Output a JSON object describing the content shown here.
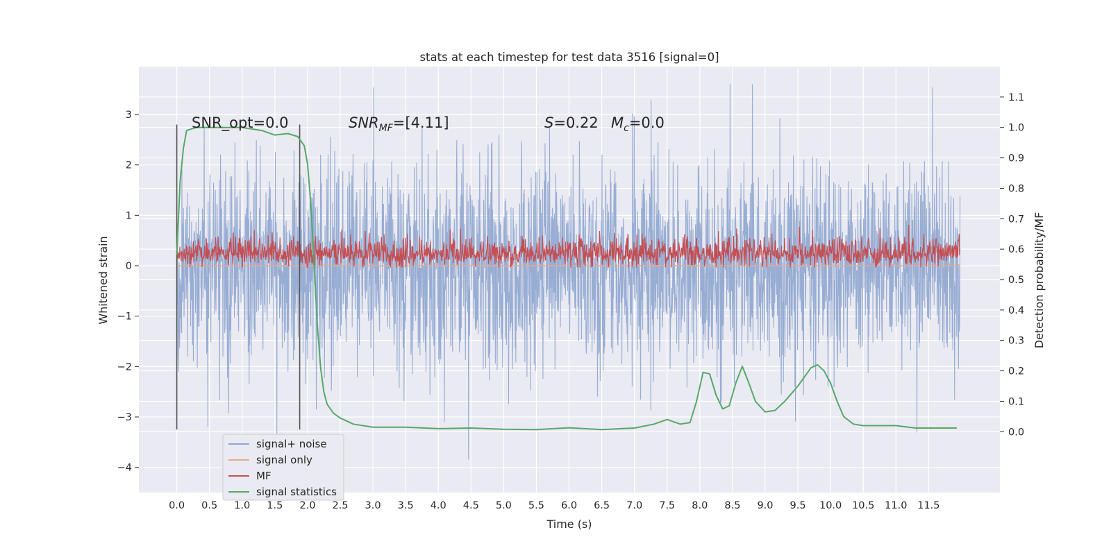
{
  "chart_data": {
    "type": "line",
    "title": "stats at each timestep for test data 3516 [signal=0]",
    "xlabel": "Time (s)",
    "ylabel_left": "Whitened strain",
    "ylabel_right": "Detection probability/MF",
    "xlim": [
      -0.58,
      12.59
    ],
    "ylim_left": [
      -4.5,
      3.95
    ],
    "ylim_right": [
      -0.2,
      1.2
    ],
    "x_ticks": [
      0.0,
      0.5,
      1.0,
      1.5,
      2.0,
      2.5,
      3.0,
      3.5,
      4.0,
      4.5,
      5.0,
      5.5,
      6.0,
      6.5,
      7.0,
      7.5,
      8.0,
      8.5,
      9.0,
      9.5,
      10.0,
      10.5,
      11.0,
      11.5
    ],
    "x_tick_labels": [
      "0.0",
      "0.5",
      "1.0",
      "1.5",
      "2.0",
      "2.5",
      "3.0",
      "3.5",
      "4.0",
      "4.5",
      "5.0",
      "5.5",
      "6.0",
      "6.5",
      "7.0",
      "7.5",
      "8.0",
      "8.5",
      "9.0",
      "9.5",
      "10.0",
      "10.5",
      "11.0",
      "11.5"
    ],
    "y_left_ticks": [
      3,
      2,
      1,
      0,
      -1,
      -2,
      -3,
      -4
    ],
    "y_left_tick_labels": [
      "3",
      "2",
      "1",
      "0",
      "−1",
      "−2",
      "−3",
      "−4"
    ],
    "y_right_ticks": [
      1.1,
      1.0,
      0.9,
      0.8,
      0.7,
      0.6,
      0.5,
      0.4,
      0.3,
      0.2,
      0.1,
      0.0
    ],
    "y_right_tick_labels": [
      "1.1",
      "1.0",
      "0.9",
      "0.8",
      "0.7",
      "0.6",
      "0.5",
      "0.4",
      "0.3",
      "0.2",
      "0.1",
      "0.0"
    ],
    "grid": true,
    "legend_placement": "lower-left",
    "series": [
      {
        "name": "signal+ noise",
        "color": "#8fa6cf",
        "axis": "left",
        "x_range": [
          0.0,
          11.98
        ],
        "approx_envelope": [
          -2.6,
          2.6
        ],
        "max": 3.6,
        "min": -4.1
      },
      {
        "name": "signal only",
        "color": "#e9a98a",
        "axis": "left",
        "x_range": [
          0.0,
          11.98
        ],
        "value": 0.0
      },
      {
        "name": "MF",
        "color": "#c44e52",
        "axis": "right",
        "x_range": [
          0.0,
          11.98
        ],
        "approx_envelope": [
          0.54,
          0.68
        ]
      },
      {
        "name": "signal statistics",
        "color": "#55a868",
        "axis": "right",
        "x": [
          0.0,
          0.05,
          0.1,
          0.15,
          0.3,
          0.6,
          1.0,
          1.3,
          1.5,
          1.7,
          1.85,
          1.95,
          2.0,
          2.05,
          2.1,
          2.15,
          2.2,
          2.25,
          2.3,
          2.4,
          2.5,
          2.7,
          3.0,
          3.5,
          4.0,
          4.5,
          5.0,
          5.5,
          6.0,
          6.5,
          7.0,
          7.3,
          7.5,
          7.7,
          7.85,
          7.95,
          8.05,
          8.15,
          8.25,
          8.35,
          8.45,
          8.55,
          8.65,
          8.75,
          8.85,
          9.0,
          9.15,
          9.3,
          9.5,
          9.7,
          9.8,
          9.9,
          10.0,
          10.1,
          10.2,
          10.35,
          10.5,
          10.8,
          11.0,
          11.3,
          11.6,
          11.93
        ],
        "y": [
          0.58,
          0.82,
          0.93,
          0.99,
          1.0,
          1.0,
          1.0,
          0.99,
          0.975,
          0.98,
          0.97,
          0.94,
          0.88,
          0.75,
          0.55,
          0.35,
          0.21,
          0.13,
          0.09,
          0.06,
          0.045,
          0.025,
          0.015,
          0.015,
          0.01,
          0.012,
          0.008,
          0.007,
          0.013,
          0.007,
          0.012,
          0.025,
          0.04,
          0.025,
          0.03,
          0.1,
          0.195,
          0.19,
          0.12,
          0.075,
          0.085,
          0.16,
          0.215,
          0.16,
          0.1,
          0.065,
          0.07,
          0.1,
          0.15,
          0.21,
          0.22,
          0.2,
          0.16,
          0.1,
          0.05,
          0.025,
          0.02,
          0.02,
          0.02,
          0.012,
          0.012,
          0.012
        ]
      }
    ],
    "vertical_markers": [
      {
        "x": 0.0,
        "y_range": [
          -3.25,
          2.8
        ],
        "color": "#555555"
      },
      {
        "x": 1.88,
        "y_range": [
          -3.25,
          2.8
        ],
        "color": "#555555"
      }
    ],
    "annotations": {
      "snr_opt": "SNR_opt=0.0",
      "snr_mf_sym": "SNR",
      "snr_mf_sub": "MF",
      "snr_mf_val": "=[4.11]",
      "s_sym": "S",
      "s_val": "=0.22",
      "mc_sym": "M",
      "mc_sub": "c",
      "mc_val": "=0.0"
    }
  }
}
